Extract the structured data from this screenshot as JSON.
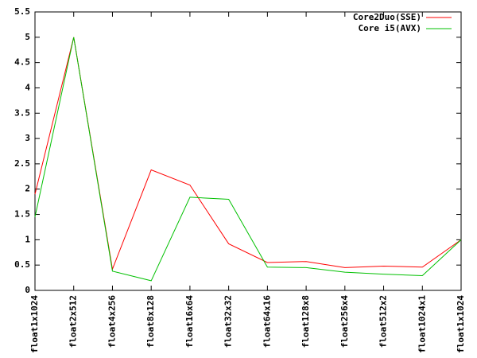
{
  "chart_data": {
    "type": "line",
    "categories": [
      "float1x1024",
      "float2x512",
      "float4x256",
      "float8x128",
      "float16x64",
      "float32x32",
      "float64x16",
      "float128x8",
      "float256x4",
      "float512x2",
      "float1024x1",
      "float1x1024"
    ],
    "series": [
      {
        "name": "Core2Duo(SSE)",
        "color": "#ff0000",
        "values": [
          1.9,
          5.0,
          0.42,
          2.38,
          2.08,
          0.92,
          0.55,
          0.57,
          0.45,
          0.48,
          0.46,
          1.0
        ]
      },
      {
        "name": "Core i5(AVX)",
        "color": "#00c000",
        "values": [
          1.45,
          5.0,
          0.38,
          0.19,
          1.84,
          1.8,
          0.46,
          0.45,
          0.36,
          0.32,
          0.29,
          1.0
        ]
      }
    ],
    "ylim": [
      0,
      5.5
    ],
    "yticks": [
      0,
      0.5,
      1,
      1.5,
      2,
      2.5,
      3,
      3.5,
      4,
      4.5,
      5,
      5.5
    ],
    "grid": false,
    "legend": "top-right"
  }
}
